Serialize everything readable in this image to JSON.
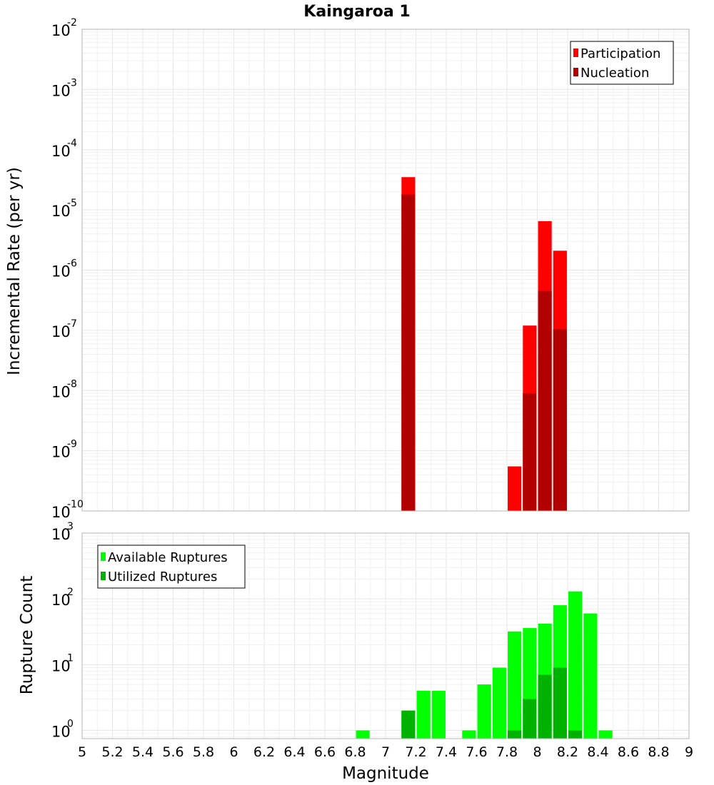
{
  "chart_data": [
    {
      "type": "bar",
      "title": "Kaingaroa 1",
      "xlabel": "",
      "ylabel": "Incremental Rate (per yr)",
      "xlim": [
        5,
        9
      ],
      "ylim": [
        1e-10,
        0.01
      ],
      "yscale": "log",
      "grid": true,
      "legend_position": "top-right",
      "bar_width": 0.09,
      "series": [
        {
          "name": "Participation",
          "color": "#ff0000",
          "x": [
            7.15,
            7.85,
            7.95,
            8.05,
            8.15
          ],
          "values": [
            3.5e-05,
            5.5e-10,
            1.2e-07,
            6.5e-06,
            2.1e-06
          ]
        },
        {
          "name": "Nucleation",
          "color": "#b20000",
          "x": [
            7.15,
            7.95,
            8.05,
            8.15
          ],
          "values": [
            1.8e-05,
            9e-09,
            4.5e-07,
            1.05e-07
          ]
        }
      ]
    },
    {
      "type": "bar",
      "title": "",
      "xlabel": "Magnitude",
      "ylabel": "Rupture Count",
      "xlim": [
        5,
        9
      ],
      "ylim": [
        0.75,
        1000
      ],
      "yscale": "log",
      "grid": true,
      "legend_position": "top-left",
      "bar_width": 0.09,
      "x_ticks": [
        "5",
        "5.2",
        "5.4",
        "5.6",
        "5.8",
        "6",
        "6.2",
        "6.4",
        "6.6",
        "6.8",
        "7",
        "7.2",
        "7.4",
        "7.6",
        "7.8",
        "8",
        "8.2",
        "8.4",
        "8.6",
        "8.8",
        "9"
      ],
      "series": [
        {
          "name": "Available Ruptures",
          "color": "#00ff00",
          "x": [
            6.85,
            7.15,
            7.25,
            7.35,
            7.55,
            7.65,
            7.75,
            7.85,
            7.95,
            8.05,
            8.15,
            8.25,
            8.35,
            8.45
          ],
          "values": [
            1,
            2,
            4,
            4,
            1,
            5,
            9,
            32,
            36,
            42,
            80,
            130,
            60,
            1
          ]
        },
        {
          "name": "Utilized Ruptures",
          "color": "#00b200",
          "x": [
            7.15,
            7.85,
            7.95,
            8.05,
            8.15,
            8.25
          ],
          "values": [
            2,
            1,
            3,
            7,
            9,
            1
          ]
        }
      ]
    }
  ]
}
